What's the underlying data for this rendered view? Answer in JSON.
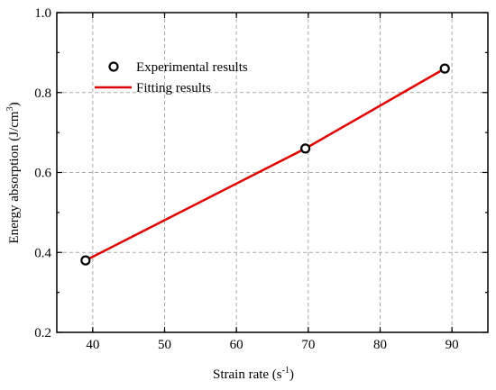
{
  "chart_data": {
    "type": "line",
    "xlabel": "Strain rate (s",
    "xlabel_sup": "-1",
    "xlabel_end": ")",
    "ylabel": "Energy absorption (J/cm",
    "ylabel_sup": "3",
    "ylabel_end": ")",
    "xlim": [
      35,
      95
    ],
    "ylim": [
      0.2,
      1.0
    ],
    "xticks": [
      40,
      50,
      60,
      70,
      80,
      90
    ],
    "xtick_labels": [
      "40",
      "50",
      "60",
      "70",
      "80",
      "90"
    ],
    "yticks": [
      0.2,
      0.4,
      0.6,
      0.8,
      1.0
    ],
    "ytick_labels": [
      "0.2",
      "0.4",
      "0.6",
      "0.8",
      "1.0"
    ],
    "grid": true,
    "legend_position": "top-left",
    "series": [
      {
        "name": "Experimental results",
        "style": "scatter",
        "marker": "open-circle",
        "color": "#000000",
        "x": [
          39,
          69.6,
          89
        ],
        "y": [
          0.38,
          0.66,
          0.86
        ]
      },
      {
        "name": "Fitting results",
        "style": "line",
        "color": "#e00000",
        "x": [
          39,
          69.6,
          89
        ],
        "y": [
          0.38,
          0.66,
          0.86
        ]
      }
    ]
  }
}
